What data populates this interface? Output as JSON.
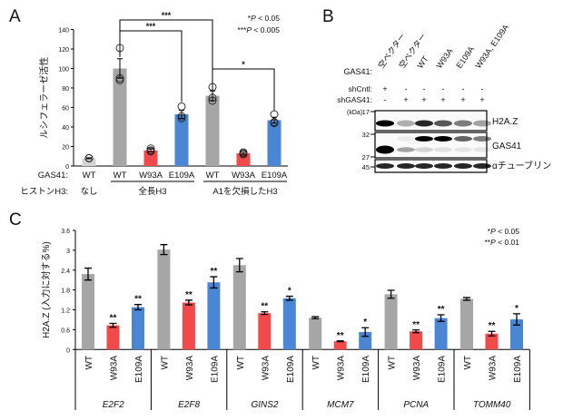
{
  "panels": {
    "a": "A",
    "b": "B",
    "c": "C"
  },
  "chart_data": [
    {
      "type": "bar",
      "ylabel": "ルシフェラーゼ活性",
      "ylim": [
        0,
        140
      ],
      "yticks": [
        0,
        20,
        40,
        60,
        80,
        100,
        120,
        140
      ],
      "row1_label": "GAS41:",
      "row2_label": "ヒストンH3:",
      "categories": [
        "WT",
        "WT",
        "W93A",
        "E109A",
        "WT",
        "W93A",
        "E109A"
      ],
      "groups": [
        "なし",
        "全長H3",
        "A1を欠損したH3"
      ],
      "values": [
        8,
        100,
        16,
        53,
        72,
        13,
        47
      ],
      "errors": [
        0.5,
        10,
        1.5,
        4,
        5,
        1,
        3
      ],
      "points": [
        [
          8,
          8,
          8
        ],
        [
          121,
          90,
          88
        ],
        [
          18,
          16,
          15
        ],
        [
          61,
          51,
          49
        ],
        [
          81,
          70,
          67
        ],
        [
          14,
          12,
          13
        ],
        [
          53,
          45,
          44
        ]
      ],
      "colors": [
        "#d4d4d4",
        "#a6a6a6",
        "#f24a4a",
        "#4a86d4",
        "#a6a6a6",
        "#f24a4a",
        "#4a86d4"
      ],
      "significance": [
        {
          "from": 1,
          "to": 3,
          "label": "***"
        },
        {
          "from": 1,
          "to": 4,
          "label": "***"
        },
        {
          "from": 4,
          "to": 6,
          "label": "*"
        }
      ],
      "legend": [
        "*P < 0.05",
        "***P < 0.005"
      ]
    },
    {
      "type": "bar",
      "ylabel": "H2A.Z (入力に対する%)",
      "ylim": [
        0,
        3.6
      ],
      "yticks": [
        "0",
        "0.6",
        "1.2",
        "1.8",
        "2.4",
        "3",
        "3.6"
      ],
      "categories": [
        "WT",
        "W93A",
        "E109A"
      ],
      "genes": [
        "E2F2",
        "E2F8",
        "GINS2",
        "MCM7",
        "PCNA",
        "TOMM40"
      ],
      "colors": [
        "#a6a6a6",
        "#f24a4a",
        "#4a86d4"
      ],
      "series_values": [
        [
          2.28,
          0.73,
          1.28
        ],
        [
          3.02,
          1.42,
          2.03
        ],
        [
          2.55,
          1.1,
          1.55
        ],
        [
          0.96,
          0.25,
          0.53
        ],
        [
          1.67,
          0.55,
          0.95
        ],
        [
          1.53,
          0.48,
          0.91
        ]
      ],
      "errors": [
        [
          0.18,
          0.06,
          0.08
        ],
        [
          0.15,
          0.07,
          0.17
        ],
        [
          0.2,
          0.04,
          0.06
        ],
        [
          0.03,
          0.01,
          0.13
        ],
        [
          0.12,
          0.04,
          0.1
        ],
        [
          0.04,
          0.07,
          0.17
        ]
      ],
      "stars": [
        [
          "",
          "**",
          "**"
        ],
        [
          "",
          "**",
          "**"
        ],
        [
          "",
          "**",
          "*"
        ],
        [
          "",
          "**",
          "*"
        ],
        [
          "",
          "**",
          "**"
        ],
        [
          "",
          "**",
          "*"
        ]
      ],
      "legend": [
        "*P < 0.05",
        "**P < 0.01"
      ]
    }
  ],
  "blot": {
    "lanes": [
      "空ベクター",
      "空ベクター",
      "WT",
      "W93A",
      "E109A",
      "W93A, E109A"
    ],
    "row_labels": [
      "GAS41:",
      "shCntl:",
      "shGAS41:"
    ],
    "shCntl": [
      "+",
      "-",
      "-",
      "-",
      "-",
      "-"
    ],
    "shGAS41": [
      "-",
      "+",
      "+",
      "+",
      "+",
      "+"
    ],
    "kda_label": "(kDa)",
    "markers": [
      "17",
      "32",
      "27",
      "45"
    ],
    "bands": [
      "H2A.Z",
      "GAS41",
      "αチューブリン"
    ],
    "h2az_intensity": [
      1,
      0.3,
      0.85,
      0.65,
      0.5,
      0.35
    ],
    "gas41_upper_intensity": [
      0,
      0.05,
      1,
      1,
      0.6,
      0.5
    ],
    "gas41_lower_intensity": [
      1,
      0.35,
      0.15,
      0.1,
      0.08,
      0.08
    ],
    "tubulin_intensity": [
      1,
      1,
      1,
      1,
      1,
      1
    ]
  }
}
